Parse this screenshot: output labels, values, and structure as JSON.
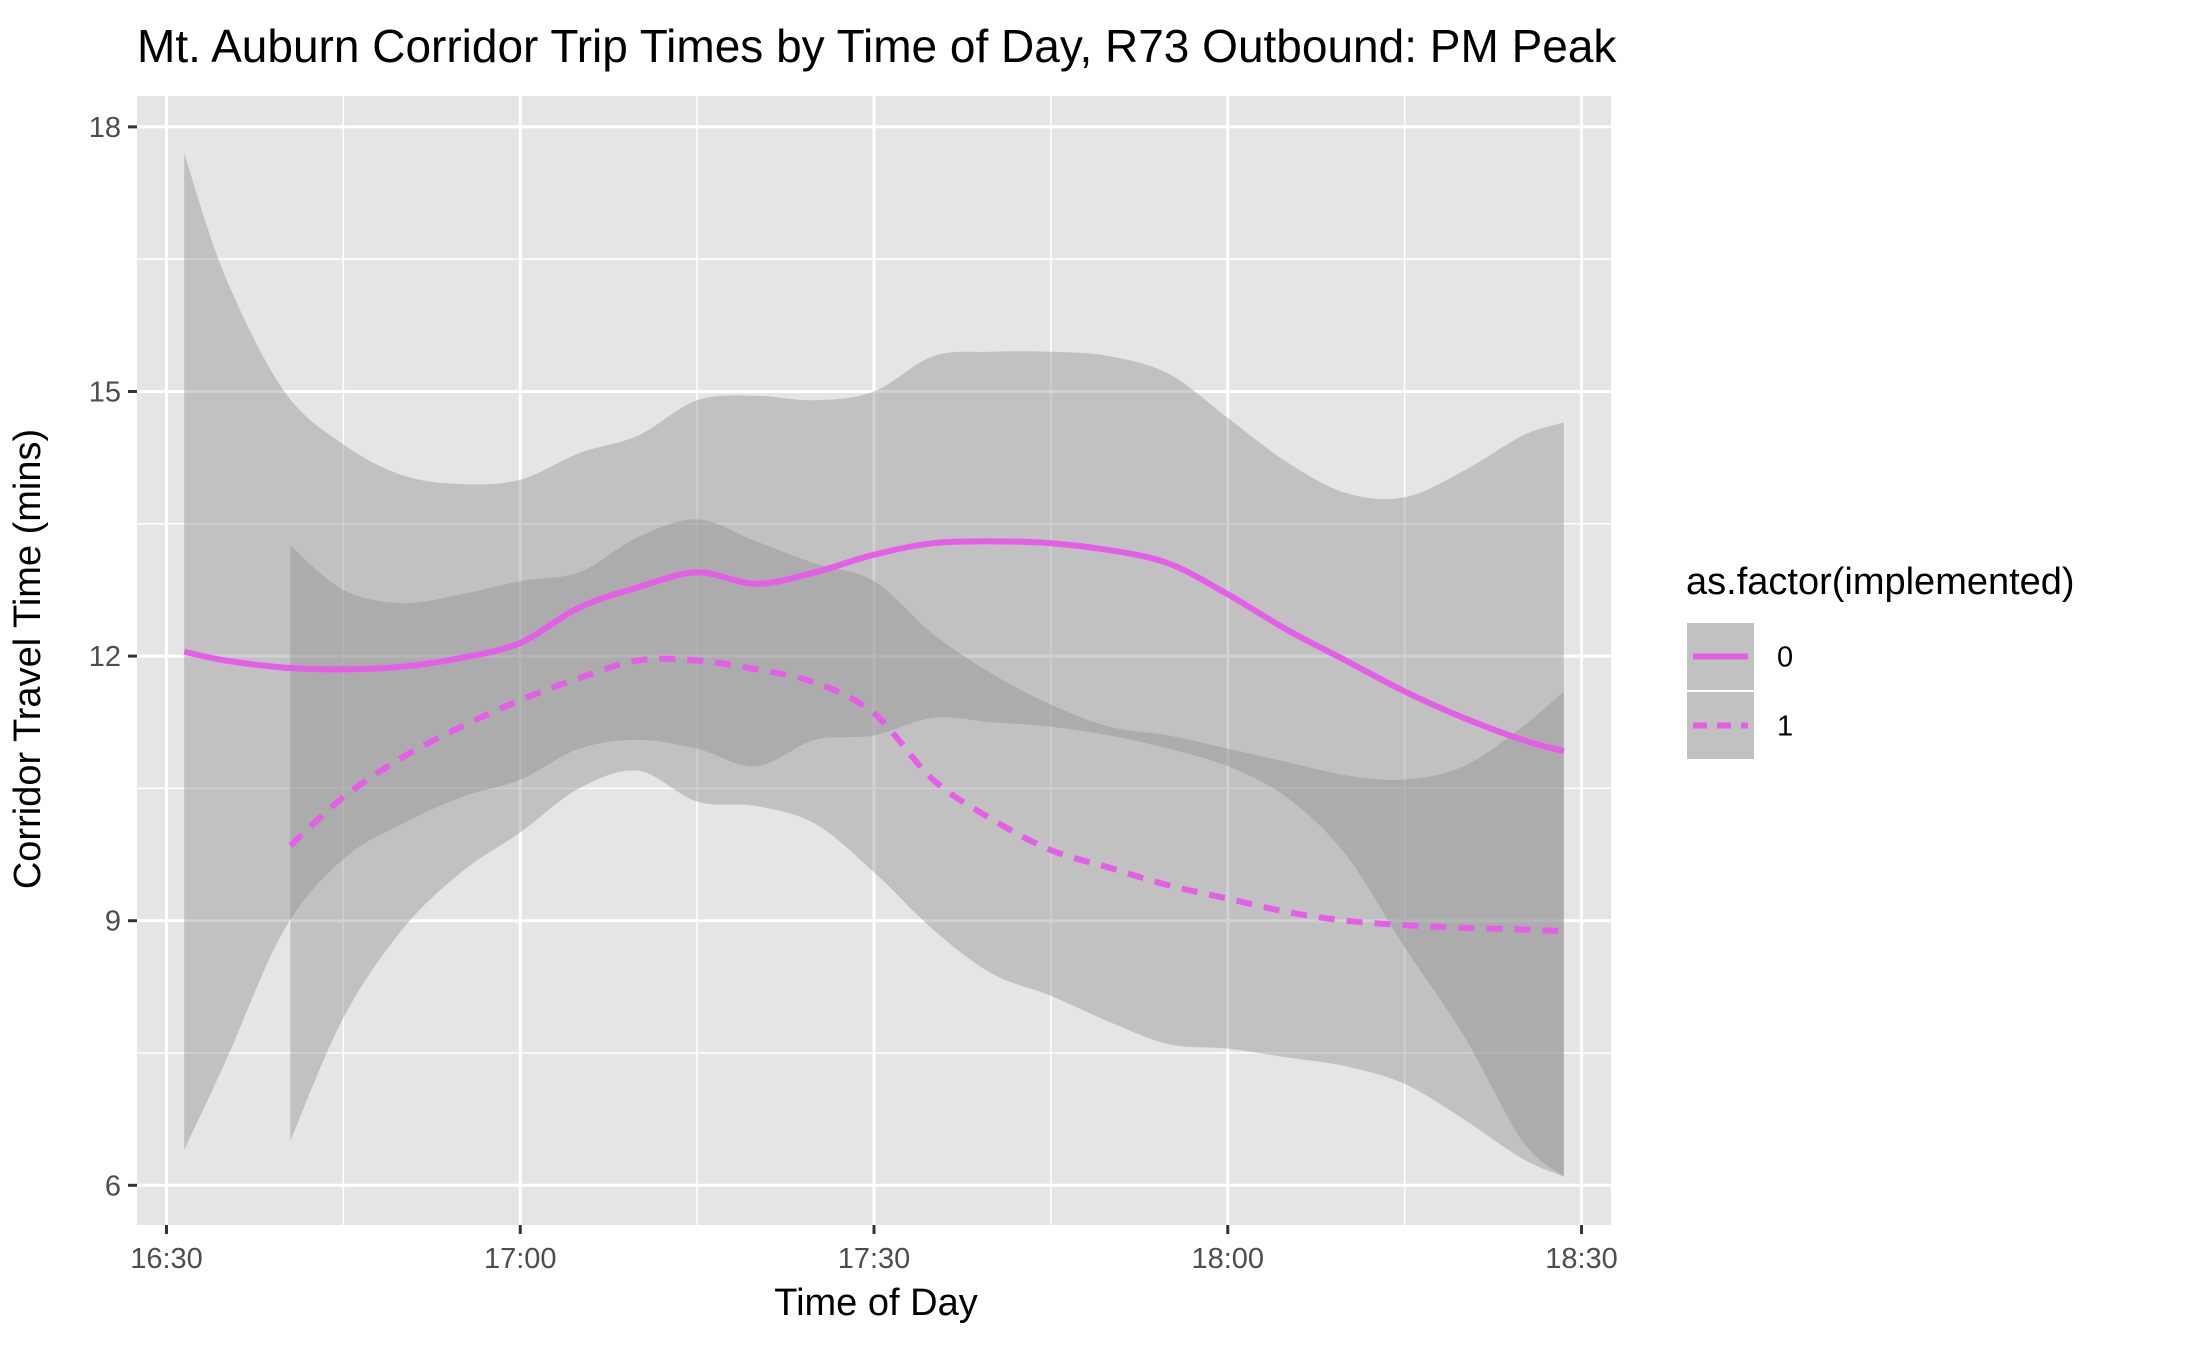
{
  "chart_data": {
    "type": "line",
    "title": "Mt. Auburn Corridor Trip Times by Time of Day, R73 Outbound: PM Peak",
    "xlabel": "Time of Day",
    "ylabel": "Corridor Travel Time (mins)",
    "x_tick_labels": [
      "16:30",
      "17:00",
      "17:30",
      "18:00",
      "18:30"
    ],
    "x_ticks_minutes": [
      990,
      1020,
      1050,
      1080,
      1110
    ],
    "y_ticks": [
      6,
      9,
      12,
      15,
      18
    ],
    "x_range_minutes": [
      987.5,
      1112.5
    ],
    "ylim": [
      5.55,
      18.35
    ],
    "grid": true,
    "legend": {
      "title": "as.factor(implemented)",
      "position": "right"
    },
    "colors": {
      "line": "#e45ee8",
      "ribbon": "#8c8c8c",
      "panel": "#e5e5e5",
      "grid": "#ffffff"
    },
    "series": [
      {
        "name": "0",
        "line_style": "solid",
        "x_minutes": [
          991.5,
          995,
          1000,
          1005,
          1010,
          1015,
          1020,
          1025,
          1030,
          1035,
          1040,
          1045,
          1050,
          1055,
          1060,
          1065,
          1070,
          1075,
          1080,
          1085,
          1090,
          1095,
          1100,
          1105,
          1108.5
        ],
        "y": [
          12.05,
          11.95,
          11.87,
          11.85,
          11.88,
          11.98,
          12.15,
          12.55,
          12.78,
          12.95,
          12.82,
          12.95,
          13.15,
          13.28,
          13.3,
          13.28,
          13.2,
          13.05,
          12.7,
          12.3,
          11.95,
          11.6,
          11.3,
          11.05,
          10.92
        ],
        "upper": [
          17.7,
          16.3,
          15.0,
          14.4,
          14.05,
          13.95,
          14.0,
          14.3,
          14.5,
          14.9,
          14.95,
          14.9,
          15.0,
          15.4,
          15.45,
          15.45,
          15.4,
          15.2,
          14.7,
          14.2,
          13.85,
          13.8,
          14.1,
          14.5,
          14.65
        ],
        "lower": [
          6.4,
          7.4,
          8.9,
          9.7,
          10.1,
          10.4,
          10.6,
          10.95,
          11.05,
          10.95,
          10.75,
          11.05,
          11.1,
          11.3,
          11.25,
          11.2,
          11.1,
          10.95,
          10.75,
          10.4,
          9.75,
          8.7,
          7.7,
          6.5,
          6.1
        ]
      },
      {
        "name": "1",
        "line_style": "dashed",
        "x_minutes": [
          1000.5,
          1005,
          1010,
          1015,
          1020,
          1025,
          1030,
          1035,
          1040,
          1045,
          1050,
          1055,
          1060,
          1065,
          1070,
          1075,
          1080,
          1085,
          1090,
          1095,
          1100,
          1105,
          1108.5
        ],
        "y": [
          9.85,
          10.4,
          10.85,
          11.2,
          11.5,
          11.75,
          11.95,
          11.95,
          11.85,
          11.7,
          11.35,
          10.6,
          10.15,
          9.8,
          9.6,
          9.4,
          9.25,
          9.1,
          9.0,
          8.95,
          8.92,
          8.9,
          8.88
        ],
        "upper": [
          13.25,
          12.75,
          12.6,
          12.7,
          12.85,
          12.95,
          13.35,
          13.55,
          13.3,
          13.05,
          12.85,
          12.25,
          11.8,
          11.45,
          11.2,
          11.1,
          10.95,
          10.8,
          10.65,
          10.6,
          10.75,
          11.2,
          11.6
        ],
        "lower": [
          6.5,
          7.9,
          8.9,
          9.55,
          10.0,
          10.5,
          10.7,
          10.35,
          10.3,
          10.1,
          9.55,
          8.9,
          8.4,
          8.15,
          7.85,
          7.6,
          7.55,
          7.45,
          7.35,
          7.15,
          6.75,
          6.3,
          6.1
        ]
      }
    ]
  }
}
